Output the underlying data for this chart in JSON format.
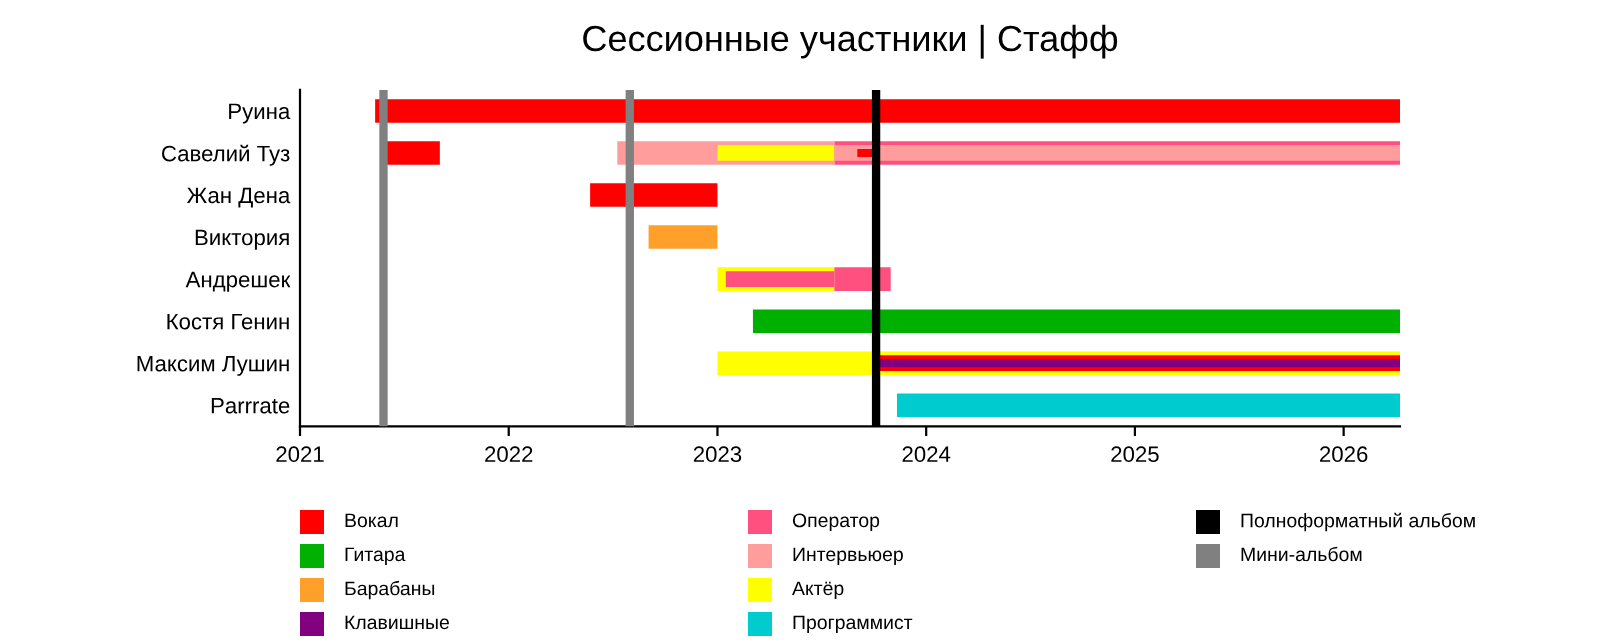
{
  "chart_data": {
    "type": "bar",
    "orientation": "horizontal",
    "title": "Сессионные участники | Стафф",
    "categories": [
      "Руина",
      "Савелий Туз",
      "Жан Дена",
      "Виктория",
      "Андрешек",
      "Костя Генин",
      "Максим Лушин",
      "Parrrate"
    ],
    "series": [
      {
        "name": "Вокал",
        "color": "#ff0000",
        "base": [
          2021.36,
          2021.41,
          2022.39,
          null,
          null,
          null,
          2023.76,
          null
        ],
        "values": [
          4.91,
          0.26,
          0.61,
          null,
          null,
          null,
          2.51,
          null
        ]
      },
      {
        "name": "Гитара",
        "color": "#00b000",
        "base": [
          null,
          null,
          null,
          null,
          null,
          2023.17,
          null,
          null
        ],
        "values": [
          null,
          null,
          null,
          null,
          null,
          3.1,
          null,
          null
        ]
      },
      {
        "name": "Барабаны",
        "color": "#ffa02a",
        "base": [
          null,
          null,
          null,
          2022.67,
          null,
          null,
          null,
          null
        ],
        "values": [
          null,
          null,
          null,
          0.33,
          null,
          null,
          null,
          null
        ]
      },
      {
        "name": "Клавишные",
        "color": "#800080",
        "base": [
          null,
          null,
          null,
          null,
          null,
          null,
          2023.76,
          null
        ],
        "values": [
          null,
          null,
          null,
          null,
          null,
          null,
          2.51,
          null
        ]
      },
      {
        "name": "Оператор",
        "color": "#ff5080",
        "base": [
          null,
          2023.56,
          null,
          null,
          2023.04,
          null,
          null,
          null
        ],
        "values": [
          null,
          2.71,
          null,
          null,
          0.52,
          null,
          null,
          null
        ]
      },
      {
        "name": "Интервьюер",
        "color": "#ff9c9c",
        "base": [
          null,
          2022.52,
          null,
          null,
          null,
          null,
          null,
          null
        ],
        "values": [
          null,
          1.04,
          null,
          null,
          null,
          null,
          null,
          null
        ]
      },
      {
        "name": "Актёр",
        "color": "#ffff00",
        "base": [
          null,
          2023.0,
          null,
          null,
          2023.0,
          null,
          2023.0,
          null
        ],
        "values": [
          null,
          0.56,
          null,
          null,
          0.56,
          null,
          3.27,
          null
        ]
      },
      {
        "name": "Программист",
        "color": "#00ccd0",
        "base": [
          null,
          null,
          null,
          null,
          null,
          null,
          null,
          2023.86
        ],
        "values": [
          null,
          null,
          null,
          null,
          null,
          null,
          null,
          2.41
        ]
      },
      {
        "color": "#ff0000",
        "base": [
          null,
          2023.67,
          null,
          null,
          null,
          null,
          null,
          null
        ],
        "values": [
          null,
          0.08,
          null,
          null,
          null,
          null,
          null,
          null
        ]
      },
      {
        "color": "#ff5080",
        "base": [
          null,
          null,
          null,
          null,
          2023.56,
          null,
          null,
          null
        ],
        "values": [
          null,
          null,
          null,
          null,
          0.27,
          null,
          null,
          null
        ]
      },
      {
        "color": "#ff9c9c",
        "base": [
          null,
          2023.56,
          null,
          null,
          null,
          null,
          null,
          null
        ],
        "values": [
          null,
          2.71,
          null,
          null,
          null,
          null,
          null,
          null
        ]
      }
    ],
    "ref_lines": [
      {
        "axis": "x",
        "value": 2023.76,
        "label": "Полноформатный альбом",
        "color": "#000000"
      },
      {
        "axis": "x",
        "value": 2021.4,
        "label": "Мини-альбом",
        "color": "#808080"
      },
      {
        "axis": "x",
        "value": 2022.58,
        "color": "#808080"
      }
    ],
    "xlim": [
      2021,
      2026.27
    ],
    "xticks": [
      2021,
      2022,
      2023,
      2024,
      2025,
      2026
    ],
    "grid": false,
    "legend": "bottom"
  }
}
